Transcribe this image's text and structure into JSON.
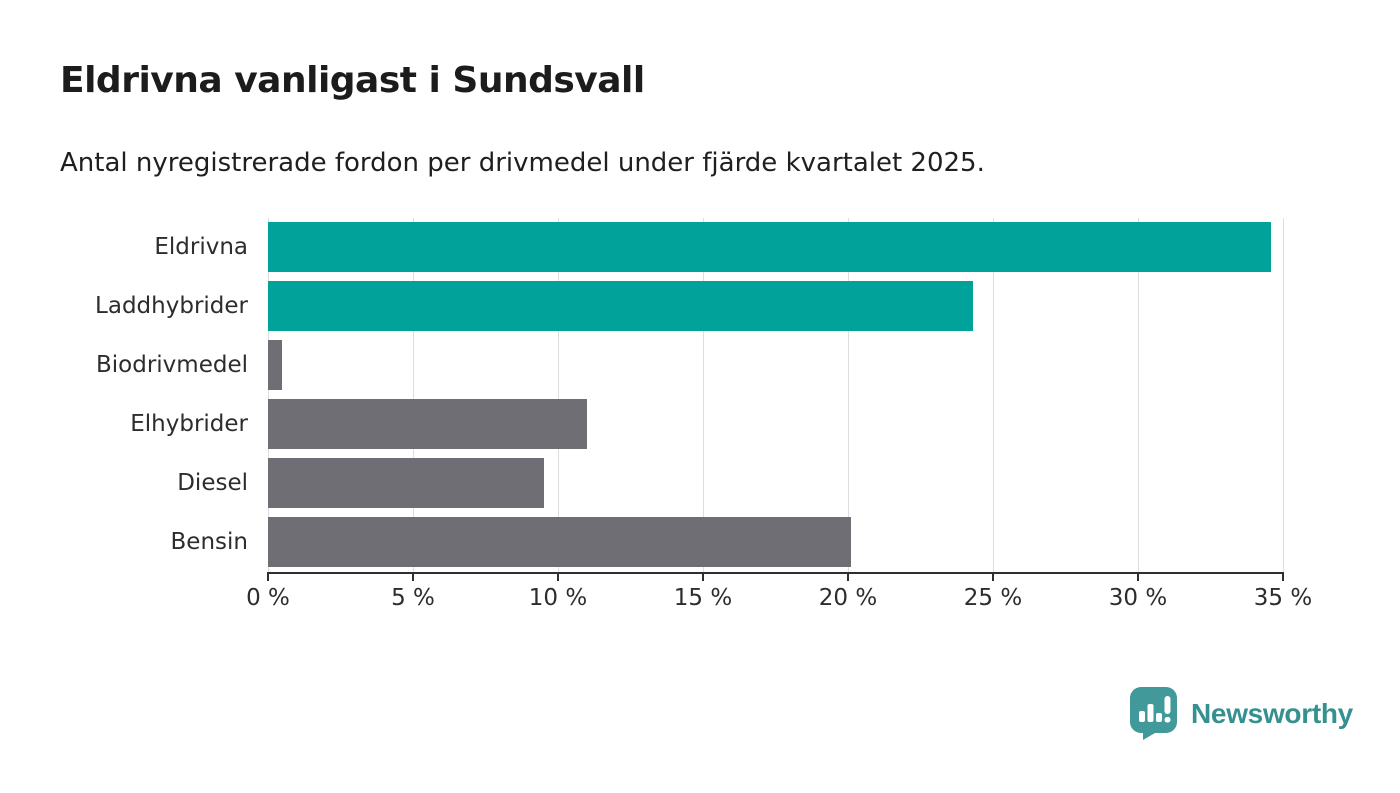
{
  "header": {
    "title": "Eldrivna vanligast i Sundsvall",
    "subtitle": "Antal nyregistrerade fordon per drivmedel under fjärde kvartalet 2025."
  },
  "chart_data": {
    "type": "bar",
    "orientation": "horizontal",
    "title": "Eldrivna vanligast i Sundsvall",
    "subtitle": "Antal nyregistrerade fordon per drivmedel under fjärde kvartalet 2025.",
    "categories": [
      "Eldrivna",
      "Laddhybrider",
      "Biodrivmedel",
      "Elhybrider",
      "Diesel",
      "Bensin"
    ],
    "values": [
      34.6,
      24.3,
      0.5,
      11.0,
      9.5,
      20.1
    ],
    "unit": "%",
    "bar_colors": [
      "#00a29a",
      "#00a29a",
      "#6e6e74",
      "#6e6e74",
      "#6e6e74",
      "#6e6e74"
    ],
    "highlight_color": "#00a29a",
    "default_color": "#6e6e74",
    "xlabel": "",
    "ylabel": "",
    "xlim": [
      0,
      35
    ],
    "x_tick_values": [
      0,
      5,
      10,
      15,
      20,
      25,
      30,
      35
    ],
    "x_tick_labels": [
      "0 %",
      "5 %",
      "10 %",
      "15 %",
      "20 %",
      "25 %",
      "30 %",
      "35 %"
    ],
    "grid": true,
    "gridline_color": "#dedede",
    "axis_color": "#2f2f2f",
    "legend": "none"
  },
  "footer": {
    "brand": "Newsworthy",
    "brand_color": "#35918f",
    "logo_icon": "newsworthy-bar-chart-bubble-icon",
    "logo_color": "#42999a"
  }
}
